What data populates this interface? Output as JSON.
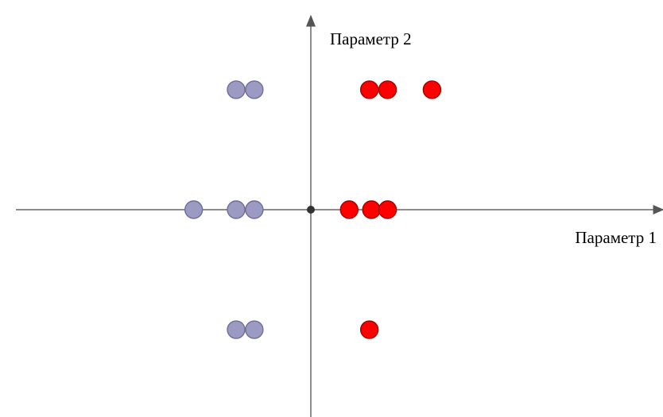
{
  "chart_data": {
    "type": "scatter",
    "xlabel": "Параметр 1",
    "ylabel": "Параметр 2",
    "xlim": [
      -15,
      17.5
    ],
    "ylim": [
      -3.1,
      2.6
    ],
    "grid": false,
    "legend": "none",
    "origin_marker": true,
    "series": [
      {
        "color": "#9a9ac2",
        "edge_color": "#6e6e98",
        "points": [
          {
            "x": -3.7,
            "y": 1.6
          },
          {
            "x": -2.8,
            "y": 1.6
          },
          {
            "x": -5.8,
            "y": 0
          },
          {
            "x": -3.7,
            "y": 0
          },
          {
            "x": -2.8,
            "y": 0
          },
          {
            "x": -3.7,
            "y": -1.6
          },
          {
            "x": -2.8,
            "y": -1.6
          }
        ]
      },
      {
        "color": "#ff0000",
        "edge_color": "#a00000",
        "points": [
          {
            "x": 2.9,
            "y": 1.6
          },
          {
            "x": 3.8,
            "y": 1.6
          },
          {
            "x": 6.0,
            "y": 1.6
          },
          {
            "x": 1.9,
            "y": 0
          },
          {
            "x": 3.0,
            "y": 0
          },
          {
            "x": 3.8,
            "y": 0
          },
          {
            "x": 2.9,
            "y": -1.6
          }
        ]
      }
    ]
  }
}
